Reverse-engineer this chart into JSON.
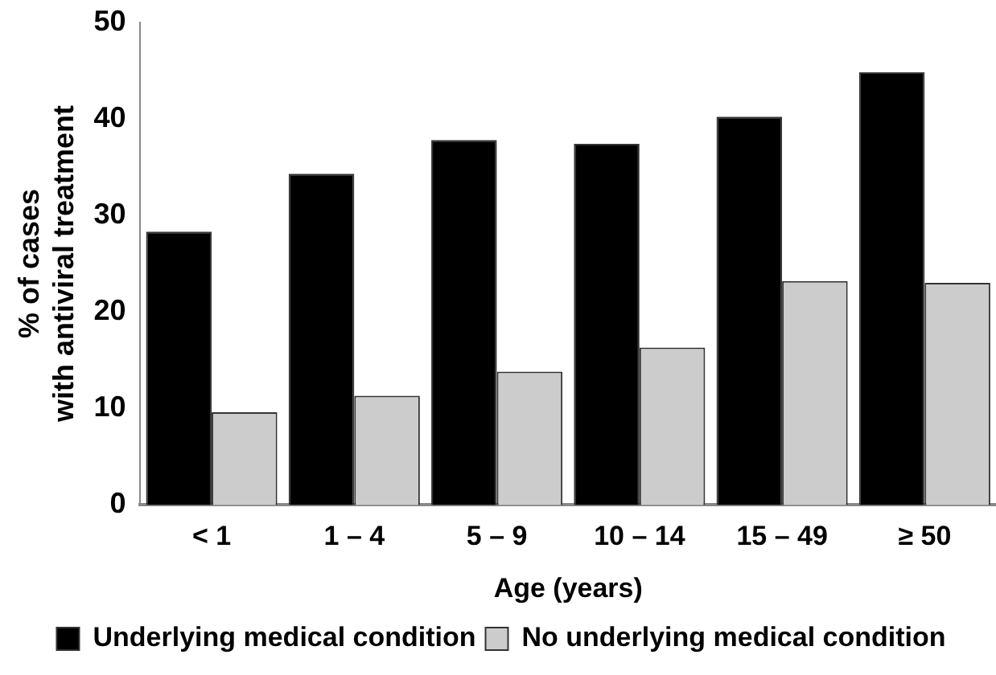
{
  "chart_data": {
    "type": "bar",
    "xlabel": "Age (years)",
    "ylabel": [
      "% of cases",
      "with antiviral treatment"
    ],
    "categories": [
      "< 1",
      "1 – 4",
      "5 – 9",
      "10 – 14",
      "15 – 49",
      "≥ 50"
    ],
    "series": [
      {
        "name": "Underlying medical condition",
        "color": "#000000",
        "values": [
          28.3,
          34.3,
          37.8,
          37.4,
          40.2,
          44.8
        ]
      },
      {
        "name": "No underlying medical condition",
        "color": "#cccccc",
        "values": [
          9.6,
          11.3,
          13.8,
          16.3,
          23.2,
          23.0
        ]
      }
    ],
    "ylim": [
      0,
      50
    ],
    "yticks": [
      0,
      10,
      20,
      30,
      40,
      50
    ],
    "grid": false,
    "legend": "bottom"
  }
}
